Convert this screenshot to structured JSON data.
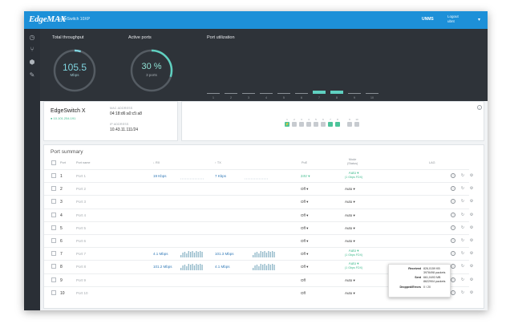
{
  "topbar": {
    "logo": "EdgeMAX",
    "device_name": "EdgeSwitch 10XP",
    "unms_label": "UNMS",
    "user_line1": "Logout",
    "user_line2": "ubnt",
    "accent": "#1d90d8"
  },
  "sidebar": {
    "items": [
      {
        "icon": "dashboard-icon",
        "glyph": "◷"
      },
      {
        "icon": "network-icon",
        "glyph": "⑂"
      },
      {
        "icon": "shield-icon",
        "glyph": "⬢"
      },
      {
        "icon": "tools-icon",
        "glyph": "✎"
      }
    ]
  },
  "dashboard": {
    "throughput": {
      "label": "Total throughput",
      "value": "105.5",
      "unit": "Mbps",
      "level": 0.05
    },
    "active_ports": {
      "label": "Active ports",
      "value": "30 %",
      "sub": "3 ports",
      "level": 0.3
    },
    "utilization": {
      "label": "Port utilization",
      "ports": [
        {
          "n": "1",
          "active": false
        },
        {
          "n": "2",
          "active": false
        },
        {
          "n": "3",
          "active": false
        },
        {
          "n": "4",
          "active": false
        },
        {
          "n": "5",
          "active": false
        },
        {
          "n": "6",
          "active": false
        },
        {
          "n": "7",
          "active": true
        },
        {
          "n": "8",
          "active": true
        },
        {
          "n": "9",
          "active": false
        },
        {
          "n": "10",
          "active": false
        }
      ]
    }
  },
  "device": {
    "name": "EdgeSwitch X",
    "ip_status": "● 10.101.254.191",
    "mac_label": "MAC ADDRESS",
    "mac": "04:18:d6:a0:c5:a8",
    "ip_label": "IP ADDRESS",
    "ip": "10.43.11.111/24"
  },
  "port_panel": {
    "ports": [
      {
        "n": "1",
        "active": true
      },
      {
        "n": "2",
        "active": false
      },
      {
        "n": "3",
        "active": false
      },
      {
        "n": "4",
        "active": false
      },
      {
        "n": "5",
        "active": false
      },
      {
        "n": "6",
        "active": false
      },
      {
        "n": "7",
        "active": true
      },
      {
        "n": "8",
        "active": true
      },
      {
        "n": "9",
        "active": false
      },
      {
        "n": "10",
        "active": false
      }
    ]
  },
  "summary": {
    "title": "Port summary",
    "headers": {
      "port": "Port",
      "name": "Port name",
      "rx": "↓ RX",
      "tx": "↑ TX",
      "poe": "PoE",
      "mode_line1": "Mode",
      "mode_line2": "(Status)",
      "lag": "LAG"
    },
    "rows": [
      {
        "num": "1",
        "name": "Port 1",
        "rx": "19 Kbps",
        "tx": "7 Kbps",
        "spark": "low",
        "poe": "24V ▾",
        "poe_active": true,
        "mode": "Auto ▾",
        "mode_status": "(1 Gbps FDX)",
        "mode_active": true
      },
      {
        "num": "2",
        "name": "Port 2",
        "rx": "",
        "tx": "",
        "spark": "",
        "poe": "Off ▾",
        "poe_active": false,
        "mode": "Auto ▾",
        "mode_status": "",
        "mode_active": false
      },
      {
        "num": "3",
        "name": "Port 3",
        "rx": "",
        "tx": "",
        "spark": "",
        "poe": "Off ▾",
        "poe_active": false,
        "mode": "Auto ▾",
        "mode_status": "",
        "mode_active": false
      },
      {
        "num": "4",
        "name": "Port 4",
        "rx": "",
        "tx": "",
        "spark": "",
        "poe": "Off ▾",
        "poe_active": false,
        "mode": "Auto ▾",
        "mode_status": "",
        "mode_active": false
      },
      {
        "num": "5",
        "name": "Port 5",
        "rx": "",
        "tx": "",
        "spark": "",
        "poe": "Off ▾",
        "poe_active": false,
        "mode": "Auto ▾",
        "mode_status": "",
        "mode_active": false
      },
      {
        "num": "6",
        "name": "Port 6",
        "rx": "",
        "tx": "",
        "spark": "",
        "poe": "Off ▾",
        "poe_active": false,
        "mode": "Auto ▾",
        "mode_status": "",
        "mode_active": false
      },
      {
        "num": "7",
        "name": "Port 7",
        "rx": "4.1 Mbps",
        "tx": "101.3 Mbps",
        "spark": "high",
        "poe": "Off ▾",
        "poe_active": false,
        "mode": "Auto ▾",
        "mode_status": "(1 Gbps FDX)",
        "mode_active": true
      },
      {
        "num": "8",
        "name": "Port 8",
        "rx": "101.2 Mbps",
        "tx": "4.1 Mbps",
        "spark": "high",
        "poe": "Off ▾",
        "poe_active": false,
        "mode": "Auto ▾",
        "mode_status": "(1 Gbps FDX)",
        "mode_active": true
      },
      {
        "num": "9",
        "name": "Port 9",
        "rx": "",
        "tx": "",
        "spark": "",
        "poe": "Off",
        "poe_active": false,
        "mode": "Auto ▾",
        "mode_status": "",
        "mode_active": false
      },
      {
        "num": "10",
        "name": "Port 10",
        "rx": "",
        "tx": "",
        "spark": "",
        "poe": "Off",
        "poe_active": false,
        "mode": "Auto ▾",
        "mode_status": "",
        "mode_active": false
      }
    ]
  },
  "tooltip": {
    "received_label": "Received",
    "received_bytes": "826,0159 KB",
    "received_packets": "3978498 packets",
    "sent_label": "Sent",
    "sent_bytes": "661,0493 MB",
    "sent_packets": "8622904 packets",
    "dropped_label": "Dropped/Errors",
    "dropped_value": "0 / 20"
  }
}
